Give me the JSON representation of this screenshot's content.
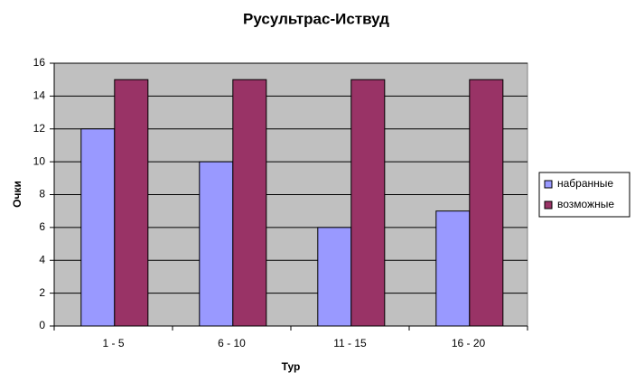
{
  "chart_data": {
    "type": "bar",
    "title": "Русультрас-Иствуд",
    "x_label": "Тур",
    "y_label": "Очки",
    "categories": [
      "1 - 5",
      "6 - 10",
      "11 - 15",
      "16 - 20"
    ],
    "series": [
      {
        "name": "набранные",
        "color": "#9999ff",
        "values": [
          12,
          10,
          6,
          7
        ]
      },
      {
        "name": "возможные",
        "color": "#993366",
        "values": [
          15,
          15,
          15,
          15
        ]
      }
    ],
    "ylim": [
      0,
      16
    ],
    "yticks": [
      0,
      2,
      4,
      6,
      8,
      10,
      12,
      14,
      16
    ],
    "grid": true,
    "legend": "right"
  }
}
